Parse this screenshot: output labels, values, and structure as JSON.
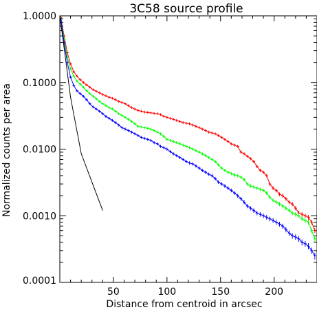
{
  "chart_data": {
    "type": "line",
    "title": "3C58 source profile",
    "xlabel": "Distance from centroid in arcsec",
    "ylabel": "Normalized counts per area",
    "xlim": [
      0,
      240
    ],
    "ylim": [
      0.0001,
      1.0
    ],
    "yscale": "log",
    "grid": false,
    "x_ticks": [
      50,
      100,
      150,
      200
    ],
    "y_ticks": [
      {
        "value": 1.0,
        "label": "1.0000"
      },
      {
        "value": 0.1,
        "label": "0.1000"
      },
      {
        "value": 0.01,
        "label": "0.0100"
      },
      {
        "value": 0.001,
        "label": "0.0010"
      },
      {
        "value": 0.0001,
        "label": "0.0001"
      }
    ],
    "series": [
      {
        "color": "#ff0000",
        "error_bars": true,
        "x": [
          1,
          4,
          7,
          10,
          13,
          16,
          19,
          22,
          25,
          28,
          31,
          34,
          37,
          40,
          43,
          46,
          49,
          52,
          55,
          58,
          61,
          64,
          67,
          70,
          73,
          76,
          79,
          82,
          85,
          88,
          91,
          94,
          97,
          100,
          103,
          106,
          109,
          112,
          115,
          118,
          121,
          124,
          127,
          130,
          133,
          136,
          139,
          142,
          145,
          148,
          151,
          154,
          157,
          160,
          163,
          166,
          169,
          172,
          175,
          178,
          181,
          184,
          187,
          190,
          193,
          196,
          199,
          202,
          205,
          208,
          211,
          214,
          217,
          220,
          223,
          226,
          229,
          232,
          235,
          238
        ],
        "y": [
          0.95,
          0.5,
          0.28,
          0.19,
          0.145,
          0.125,
          0.11,
          0.1,
          0.092,
          0.085,
          0.078,
          0.074,
          0.07,
          0.066,
          0.063,
          0.06,
          0.058,
          0.055,
          0.052,
          0.05,
          0.048,
          0.045,
          0.042,
          0.04,
          0.038,
          0.037,
          0.036,
          0.0355,
          0.035,
          0.0345,
          0.034,
          0.033,
          0.031,
          0.03,
          0.029,
          0.028,
          0.027,
          0.026,
          0.025,
          0.0245,
          0.024,
          0.023,
          0.022,
          0.021,
          0.02,
          0.019,
          0.018,
          0.0175,
          0.017,
          0.016,
          0.015,
          0.014,
          0.013,
          0.012,
          0.0115,
          0.011,
          0.009,
          0.0085,
          0.0078,
          0.0072,
          0.0065,
          0.0055,
          0.0048,
          0.0045,
          0.004,
          0.003,
          0.0026,
          0.0024,
          0.0021,
          0.002,
          0.0018,
          0.0016,
          0.0015,
          0.0013,
          0.0011,
          0.00105,
          0.001,
          0.00095,
          0.0008,
          0.0006
        ]
      },
      {
        "color": "#00ff00",
        "error_bars": true,
        "x": [
          1,
          4,
          7,
          10,
          13,
          16,
          19,
          22,
          25,
          28,
          31,
          34,
          37,
          40,
          43,
          46,
          49,
          52,
          55,
          58,
          61,
          64,
          67,
          70,
          73,
          76,
          79,
          82,
          85,
          88,
          91,
          94,
          97,
          100,
          103,
          106,
          109,
          112,
          115,
          118,
          121,
          124,
          127,
          130,
          133,
          136,
          139,
          142,
          145,
          148,
          151,
          154,
          157,
          160,
          163,
          166,
          169,
          172,
          175,
          178,
          181,
          184,
          187,
          190,
          193,
          196,
          199,
          202,
          205,
          208,
          211,
          214,
          217,
          220,
          223,
          226,
          229,
          232,
          235,
          238
        ],
        "y": [
          0.92,
          0.45,
          0.24,
          0.16,
          0.125,
          0.105,
          0.095,
          0.085,
          0.075,
          0.068,
          0.062,
          0.057,
          0.052,
          0.048,
          0.045,
          0.042,
          0.04,
          0.037,
          0.034,
          0.032,
          0.03,
          0.028,
          0.026,
          0.024,
          0.022,
          0.0215,
          0.021,
          0.0205,
          0.02,
          0.019,
          0.018,
          0.017,
          0.0155,
          0.014,
          0.0135,
          0.013,
          0.0125,
          0.012,
          0.0115,
          0.011,
          0.0105,
          0.01,
          0.0095,
          0.009,
          0.0085,
          0.008,
          0.0075,
          0.007,
          0.0065,
          0.0058,
          0.0052,
          0.0048,
          0.0045,
          0.0043,
          0.0041,
          0.004,
          0.0038,
          0.0035,
          0.003,
          0.0028,
          0.0027,
          0.0026,
          0.0025,
          0.0024,
          0.0022,
          0.0019,
          0.0017,
          0.0016,
          0.0015,
          0.0014,
          0.0013,
          0.0012,
          0.0011,
          0.00105,
          0.001,
          0.0009,
          0.00085,
          0.0008,
          0.0006,
          0.00045
        ]
      },
      {
        "color": "#0000ff",
        "error_bars": true,
        "x": [
          1,
          4,
          7,
          10,
          13,
          16,
          19,
          22,
          25,
          28,
          31,
          34,
          37,
          40,
          43,
          46,
          49,
          52,
          55,
          58,
          61,
          64,
          67,
          70,
          73,
          76,
          79,
          82,
          85,
          88,
          91,
          94,
          97,
          100,
          103,
          106,
          109,
          112,
          115,
          118,
          121,
          124,
          127,
          130,
          133,
          136,
          139,
          142,
          145,
          148,
          151,
          154,
          157,
          160,
          163,
          166,
          169,
          172,
          175,
          178,
          181,
          184,
          187,
          190,
          193,
          196,
          199,
          202,
          205,
          208,
          211,
          214,
          217,
          220,
          223,
          226,
          229,
          232,
          235,
          238
        ],
        "y": [
          0.9,
          0.4,
          0.2,
          0.12,
          0.09,
          0.075,
          0.068,
          0.062,
          0.055,
          0.048,
          0.043,
          0.04,
          0.037,
          0.034,
          0.031,
          0.029,
          0.027,
          0.025,
          0.023,
          0.021,
          0.02,
          0.019,
          0.018,
          0.017,
          0.016,
          0.015,
          0.0145,
          0.014,
          0.0135,
          0.0125,
          0.012,
          0.011,
          0.0105,
          0.01,
          0.0092,
          0.0085,
          0.008,
          0.0075,
          0.007,
          0.0065,
          0.0062,
          0.006,
          0.0056,
          0.0052,
          0.0048,
          0.0045,
          0.0042,
          0.004,
          0.0036,
          0.0032,
          0.003,
          0.0028,
          0.0026,
          0.0024,
          0.0022,
          0.002,
          0.0018,
          0.0016,
          0.0014,
          0.0013,
          0.0012,
          0.0011,
          0.00105,
          0.001,
          0.00095,
          0.0009,
          0.00085,
          0.0008,
          0.00075,
          0.0007,
          0.00062,
          0.00055,
          0.0005,
          0.00048,
          0.00045,
          0.0004,
          0.00038,
          0.00035,
          0.0003,
          0.00025
        ]
      },
      {
        "color": "#000000",
        "error_bars": false,
        "x": [
          0,
          5,
          10,
          20,
          40
        ],
        "y": [
          1.0,
          0.25,
          0.06,
          0.0085,
          0.0012
        ]
      }
    ]
  }
}
